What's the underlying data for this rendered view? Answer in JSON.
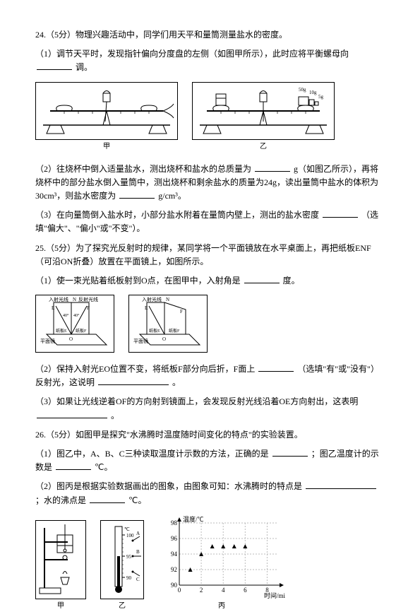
{
  "q24": {
    "intro": "24.（5分）物理兴趣活动中，同学们用天平和量筒测量盐水的密度。",
    "step1_a": "（1）调节天平时，发现指针偏向分度盘的左侧（如图甲所示），此时应将平衡螺母向",
    "step1_b": "调。",
    "step2_a": "（2）往烧杯中倒入适量盐水，测出烧杯和盐水的总质量为",
    "step2_b": "g（如图乙所示），再将烧杯中的部分盐水倒入量筒中，测出烧杯和剩余盐水的质量为24g，读出量筒中盐水的体积为30cm³，则盐水密度为",
    "step2_c": "g/cm³。",
    "step3_a": "（3）在向量筒倒入盐水时，小部分盐水附着在量筒内壁上，测出的盐水密度",
    "step3_b": "（选填\"偏大\"、\"偏小\"或\"不变\"）。",
    "weights": [
      "50g",
      "10g",
      "5g"
    ],
    "cap_left": "甲",
    "cap_right": "乙"
  },
  "q25": {
    "intro": "25.（5分）为了探究光反射时的规律，某同学将一个平面镜放在水平桌面上，再把纸板ENF（可沿ON折叠）放置在平面镜上，如图所示。",
    "step1": "（1）使一束光贴着纸板射到O点，在图甲中，入射角是",
    "step1_b": "度。",
    "step2": "（2）保持入射光EO位置不变，将纸板F部分向后折，F面上",
    "step2_b": "（选填\"有\"或\"没有\"）反射光，这说明",
    "step2_c": "。",
    "step3": "（3）如果让光线逆着OF的方向射到镜面上，会发现反射光线沿着OE方向射出，这表明",
    "step3_b": "。",
    "labels": {
      "incident": "入射光线",
      "reflected": "反射光线",
      "normal": "N",
      "E": "E",
      "F": "F",
      "O": "O",
      "mirror": "平面镜",
      "angle1": "40°",
      "angle2": "40°",
      "paper_e": "纸板E",
      "paper_f": "纸板F"
    }
  },
  "q26": {
    "intro": "26.（5分）如图甲是探究\"水沸腾时温度随时间变化的特点\"的实验装置。",
    "step1": "（1）图乙中，A、B、C三种读取温度计示数的方法，正确的是",
    "step1_b": "；图乙温度计的示数是",
    "step1_c": "℃。",
    "step2": "（2）图丙是根据实验数据画出的图象，由图象可知：水沸腾时的特点是",
    "step2_b": "；水的沸点是",
    "step2_c": "℃。",
    "cap_setup": "甲",
    "cap_therm": "乙",
    "cap_chart": "丙",
    "therm_labels": {
      "A": "A",
      "B": "B",
      "C": "C",
      "t100": "100",
      "t95": "95",
      "t90": "90",
      "unit": "℃"
    },
    "chart": {
      "type": "scatter",
      "ylabel": "温度/℃",
      "xlabel": "时间/min",
      "ylim": [
        90,
        98
      ],
      "ytick_step": 2,
      "xlim": [
        0,
        9
      ],
      "xtick_step": 2,
      "xticks": [
        0,
        2,
        4,
        6,
        8
      ],
      "yticks": [
        90,
        92,
        94,
        96,
        98
      ],
      "points": [
        {
          "x": 1,
          "y": 92
        },
        {
          "x": 2,
          "y": 94
        },
        {
          "x": 3,
          "y": 95
        },
        {
          "x": 4,
          "y": 95
        },
        {
          "x": 5,
          "y": 95
        },
        {
          "x": 6,
          "y": 95
        }
      ],
      "marker": "triangle",
      "marker_color": "#000000",
      "grid_color": "#bbbbbb",
      "axis_color": "#000000",
      "background_color": "#ffffff",
      "label_fontsize": 9
    }
  }
}
